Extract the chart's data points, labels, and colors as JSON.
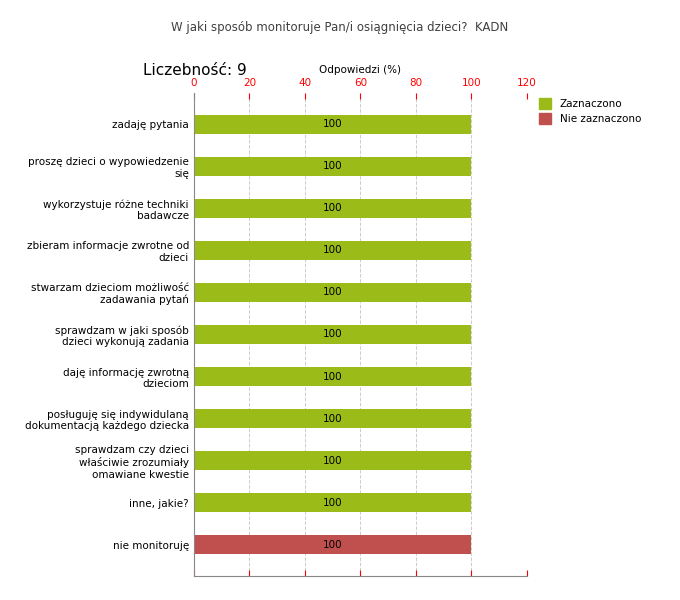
{
  "title": "W jaki sposób monitoruje Pan/i osiągnięcia dzieci?  KADN",
  "subtitle": "Liczebność: 9",
  "xlabel": "Odpowiedzi (%)",
  "categories": [
    "nie monitoruję",
    "inne, jakie?",
    "sprawdzam czy dzieci\nwłaściwie zrozumiały\nomawiane kwestie",
    "posługuję się indywidulaną\ndokumentacją każdego dziecka",
    "daję informację zwrotną\ndzieciom",
    "sprawdzam w jaki sposób\ndzieci wykonują zadania",
    "stwarzam dzieciom możliwość\nzadawania pytań",
    "zbieram informacje zwrotne od\ndzieci",
    "wykorzystuje różne techniki\nbadawcze",
    "proszę dzieci o wypowiedzenie\nsię",
    "zadaję pytania"
  ],
  "values_zaznaczono": [
    0,
    100,
    100,
    100,
    100,
    100,
    100,
    100,
    100,
    100,
    100
  ],
  "values_niezaznaczono": [
    100,
    0,
    0,
    0,
    0,
    0,
    0,
    0,
    0,
    0,
    0
  ],
  "color_zaznaczono": "#9BBB18",
  "color_niezaznaczono": "#C0504D",
  "legend_zaznaczono": "Zaznaczono",
  "legend_niezaznaczono": "Nie zaznaczono",
  "xlim": [
    0,
    120
  ],
  "xticks": [
    0,
    20,
    40,
    60,
    80,
    100,
    120
  ],
  "bar_height": 0.45,
  "background_color": "#FFFFFF",
  "grid_color": "#CCCCCC",
  "title_fontsize": 8.5,
  "subtitle_fontsize": 11,
  "label_fontsize": 7.5,
  "tick_fontsize": 7.5,
  "value_label_fontsize": 7.5
}
